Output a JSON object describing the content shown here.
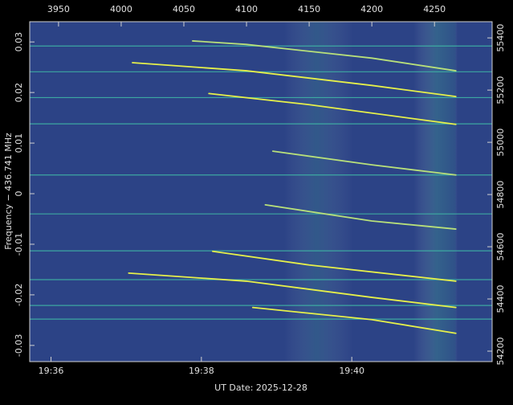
{
  "chart_data": {
    "type": "spectrogram",
    "xlabel": "UT Date: 2025-12-28",
    "ylabel": "Frequency − 436.741 MHz",
    "xlim": [
      3927,
      4296
    ],
    "xticks": [
      3950,
      4000,
      4050,
      4100,
      4150,
      4200,
      4250
    ],
    "xticks_bottom": [
      {
        "value": 3944,
        "label": "19:36"
      },
      {
        "value": 4064,
        "label": "19:38"
      },
      {
        "value": 4184,
        "label": "19:40"
      }
    ],
    "ylim": [
      -0.0332,
      0.034
    ],
    "yticks": [
      -0.03,
      -0.02,
      -0.01,
      0,
      0.01,
      0.02,
      0.03
    ],
    "y2lim": [
      54160,
      55462
    ],
    "y2ticks": [
      54200,
      54400,
      54600,
      54800,
      55000,
      55200,
      55400
    ],
    "background": "#2c4386",
    "hline_color": "#3fb8a6",
    "hlines": [
      0.0292,
      0.0241,
      0.019,
      0.0138,
      0.0037,
      -0.004,
      -0.0113,
      -0.017,
      -0.0221,
      -0.0248
    ],
    "series": [
      {
        "color": "#e6f04a",
        "x": [
          4009,
          4100,
          4200,
          4267
        ],
        "values": [
          0.0259,
          0.0243,
          0.0214,
          0.0192
        ]
      },
      {
        "color": "#b8e07a",
        "x": [
          4057,
          4100,
          4200,
          4267
        ],
        "values": [
          0.0302,
          0.0295,
          0.0268,
          0.0243
        ]
      },
      {
        "color": "#e6f04a",
        "x": [
          4070,
          4150,
          4267
        ],
        "values": [
          0.0198,
          0.0176,
          0.0137
        ]
      },
      {
        "color": "#b8e07a",
        "x": [
          4121,
          4200,
          4267
        ],
        "values": [
          0.0084,
          0.0057,
          0.0037
        ]
      },
      {
        "color": "#b8e07a",
        "x": [
          4115,
          4200,
          4267
        ],
        "values": [
          -0.0022,
          -0.0054,
          -0.007
        ]
      },
      {
        "color": "#e6f04a",
        "x": [
          4073,
          4150,
          4267
        ],
        "values": [
          -0.0114,
          -0.0141,
          -0.0173
        ]
      },
      {
        "color": "#e6f04a",
        "x": [
          4006,
          4100,
          4200,
          4267
        ],
        "values": [
          -0.0157,
          -0.0173,
          -0.0205,
          -0.0225
        ]
      },
      {
        "color": "#e6f04a",
        "x": [
          4105,
          4200,
          4267
        ],
        "values": [
          -0.0225,
          -0.0249,
          -0.0276
        ]
      }
    ]
  }
}
